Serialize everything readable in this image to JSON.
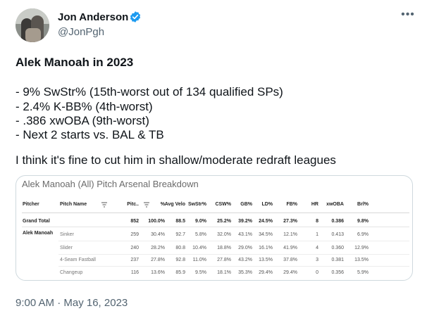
{
  "author": {
    "name": "Jon Anderson",
    "handle": "@JonPgh",
    "verified_icon": "verified-badge-icon"
  },
  "more_icon": "more-horizontal-icon",
  "tweet": {
    "title": "Alek Manoah in 2023",
    "lines": [
      "- 9% SwStr% (15th-worst out of 134 qualified SPs)",
      "- 2.4% K-BB% (4th-worst)",
      "- .386 xwOBA (9th-worst)",
      "- Next 2 starts vs. BAL & TB"
    ],
    "closing": "I think it's fine to cut him in shallow/moderate redraft leagues",
    "timestamp": "9:00 AM · May 16, 2023"
  },
  "card": {
    "title": "Alek Manoah (All) Pitch Arsenal Breakdown",
    "headers": [
      "Pitcher",
      "Pitch Name",
      "Pitc..",
      "%",
      "Avg Velo",
      "SwStr%",
      "CSW%",
      "GB%",
      "LD%",
      "FB%",
      "HR",
      "xwOBA",
      "Brl%"
    ],
    "grand_total": {
      "label": "Grand Total",
      "values": [
        "852",
        "100.0%",
        "88.5",
        "9.0%",
        "25.2%",
        "39.2%",
        "24.5%",
        "27.3%",
        "8",
        "0.386",
        "9.8%"
      ]
    },
    "pitcher": "Alek Manoah",
    "rows": [
      {
        "pitch": "Sinker",
        "values": [
          "259",
          "30.4%",
          "92.7",
          "5.8%",
          "32.0%",
          "43.1%",
          "34.5%",
          "12.1%",
          "1",
          "0.413",
          "6.9%"
        ]
      },
      {
        "pitch": "Slider",
        "values": [
          "240",
          "28.2%",
          "80.8",
          "10.4%",
          "18.8%",
          "29.0%",
          "16.1%",
          "41.9%",
          "4",
          "0.360",
          "12.9%"
        ]
      },
      {
        "pitch": "4-Seam Fastball",
        "values": [
          "237",
          "27.8%",
          "92.8",
          "11.0%",
          "27.8%",
          "43.2%",
          "13.5%",
          "37.8%",
          "3",
          "0.381",
          "13.5%"
        ]
      },
      {
        "pitch": "Changeup",
        "values": [
          "116",
          "13.6%",
          "85.9",
          "9.5%",
          "18.1%",
          "35.3%",
          "29.4%",
          "29.4%",
          "0",
          "0.356",
          "5.9%"
        ]
      }
    ]
  }
}
